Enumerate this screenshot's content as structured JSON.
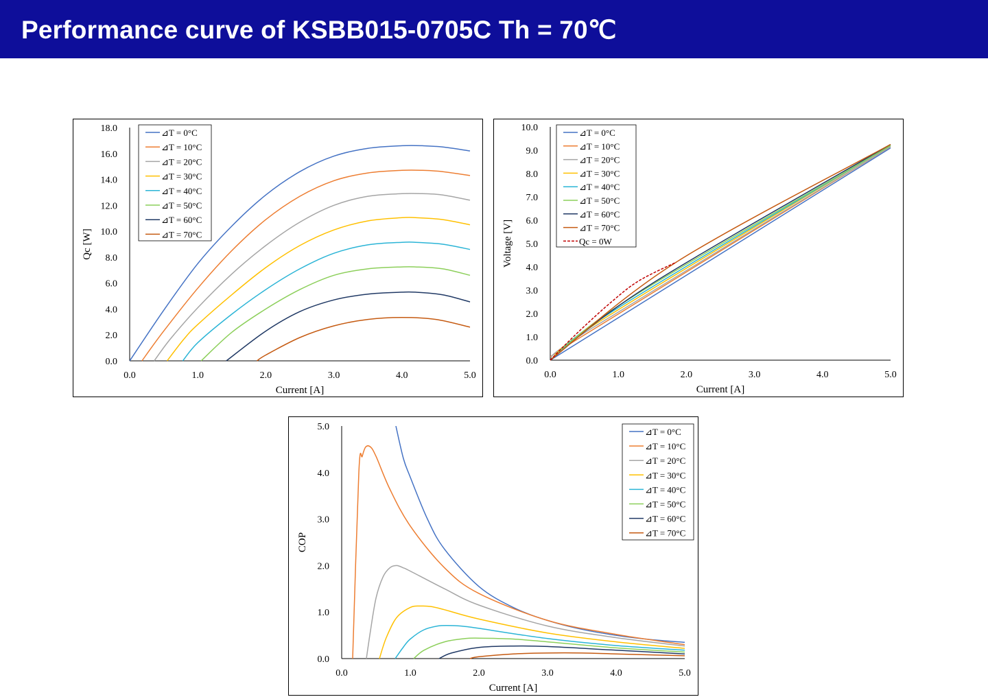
{
  "header": {
    "title": "Performance curve of KSBB015-0705C Th = 70℃",
    "background": "#0e0e9a",
    "text_color": "#ffffff"
  },
  "series_colors": [
    "#4472c4",
    "#ed7d31",
    "#a5a5a5",
    "#ffc000",
    "#2ab4d6",
    "#8ccf5a",
    "#1f3864",
    "#c55a11"
  ],
  "chart_data": [
    {
      "id": "qc",
      "type": "line",
      "xlabel": "Current [A]",
      "ylabel": "Qc [W]",
      "xlim": [
        0,
        5
      ],
      "ylim": [
        0,
        18
      ],
      "xticks": [
        "0.0",
        "1.0",
        "2.0",
        "3.0",
        "4.0",
        "5.0"
      ],
      "yticks": [
        "0.0",
        "2.0",
        "4.0",
        "6.0",
        "8.0",
        "10.0",
        "12.0",
        "14.0",
        "16.0",
        "18.0"
      ],
      "legend_position": "top-left",
      "series": [
        {
          "name": "⊿T = 0°C",
          "color": "#4472c4",
          "x": [
            0,
            0.5,
            1,
            1.5,
            2,
            2.5,
            3,
            3.5,
            4,
            4.3,
            4.6,
            5
          ],
          "y": [
            0,
            3.9,
            7.5,
            10.4,
            12.8,
            14.6,
            15.8,
            16.4,
            16.6,
            16.6,
            16.5,
            16.2
          ]
        },
        {
          "name": "⊿T = 10°C",
          "color": "#ed7d31",
          "x": [
            0.18,
            0.5,
            1,
            1.5,
            2,
            2.5,
            3,
            3.5,
            4,
            4.3,
            4.6,
            5
          ],
          "y": [
            0,
            2.3,
            5.6,
            8.5,
            10.9,
            12.7,
            13.9,
            14.5,
            14.7,
            14.7,
            14.6,
            14.3
          ]
        },
        {
          "name": "⊿T = 20°C",
          "color": "#a5a5a5",
          "x": [
            0.36,
            0.6,
            1,
            1.5,
            2,
            2.5,
            3,
            3.5,
            4,
            4.3,
            4.6,
            5
          ],
          "y": [
            0,
            1.7,
            4.1,
            6.7,
            8.9,
            10.7,
            12.0,
            12.7,
            12.9,
            12.9,
            12.8,
            12.4
          ]
        },
        {
          "name": "⊿T = 30°C",
          "color": "#ffc000",
          "x": [
            0.55,
            0.8,
            1,
            1.5,
            2,
            2.5,
            3,
            3.5,
            4,
            4.2,
            4.6,
            5
          ],
          "y": [
            0,
            1.7,
            2.8,
            5.1,
            7.2,
            8.9,
            10.1,
            10.8,
            11.05,
            11.05,
            10.9,
            10.5
          ]
        },
        {
          "name": "⊿T = 40°C",
          "color": "#2ab4d6",
          "x": [
            0.78,
            1,
            1.5,
            2,
            2.5,
            3,
            3.5,
            4,
            4.2,
            4.6,
            5
          ],
          "y": [
            0,
            1.4,
            3.6,
            5.5,
            7.1,
            8.3,
            8.95,
            9.15,
            9.15,
            9.0,
            8.6
          ]
        },
        {
          "name": "⊿T = 50°C",
          "color": "#8ccf5a",
          "x": [
            1.05,
            1.5,
            2,
            2.5,
            3,
            3.5,
            4,
            4.2,
            4.6,
            5
          ],
          "y": [
            0,
            2.2,
            4.0,
            5.5,
            6.6,
            7.1,
            7.25,
            7.25,
            7.1,
            6.6
          ]
        },
        {
          "name": "⊿T = 60°C",
          "color": "#1f3864",
          "x": [
            1.42,
            2,
            2.5,
            3,
            3.5,
            4,
            4.2,
            4.6,
            5
          ],
          "y": [
            0,
            2.3,
            3.8,
            4.7,
            5.15,
            5.3,
            5.3,
            5.1,
            4.55
          ]
        },
        {
          "name": "⊿T = 70°C",
          "color": "#c55a11",
          "x": [
            1.87,
            2,
            2.5,
            3,
            3.5,
            4,
            4.5,
            5
          ],
          "y": [
            0,
            0.45,
            1.8,
            2.7,
            3.2,
            3.35,
            3.2,
            2.6
          ]
        }
      ]
    },
    {
      "id": "voltage",
      "type": "line",
      "xlabel": "Current [A]",
      "ylabel": "Voltage [V]",
      "xlim": [
        0,
        5
      ],
      "ylim": [
        0,
        10
      ],
      "xticks": [
        "0.0",
        "1.0",
        "2.0",
        "3.0",
        "4.0",
        "5.0"
      ],
      "yticks": [
        "0.0",
        "1.0",
        "2.0",
        "3.0",
        "4.0",
        "5.0",
        "6.0",
        "7.0",
        "8.0",
        "9.0",
        "10.0"
      ],
      "legend_position": "top-left",
      "series": [
        {
          "name": "⊿T = 0°C",
          "color": "#4472c4",
          "x": [
            0,
            5
          ],
          "y": [
            0,
            9.1
          ]
        },
        {
          "name": "⊿T = 10°C",
          "color": "#ed7d31",
          "x": [
            0,
            0.4,
            5
          ],
          "y": [
            0,
            0.9,
            9.15
          ]
        },
        {
          "name": "⊿T = 20°C",
          "color": "#a5a5a5",
          "x": [
            0,
            0.6,
            5
          ],
          "y": [
            0,
            1.35,
            9.15
          ]
        },
        {
          "name": "⊿T = 30°C",
          "color": "#ffc000",
          "x": [
            0,
            0.8,
            5
          ],
          "y": [
            0,
            1.8,
            9.2
          ]
        },
        {
          "name": "⊿T = 40°C",
          "color": "#2ab4d6",
          "x": [
            0,
            1.0,
            5
          ],
          "y": [
            0,
            2.25,
            9.2
          ]
        },
        {
          "name": "⊿T = 50°C",
          "color": "#8ccf5a",
          "x": [
            0,
            1.2,
            5
          ],
          "y": [
            0,
            2.7,
            9.2
          ]
        },
        {
          "name": "⊿T = 60°C",
          "color": "#1f3864",
          "x": [
            0,
            1.45,
            5
          ],
          "y": [
            0,
            3.2,
            9.25
          ]
        },
        {
          "name": "⊿T = 70°C",
          "color": "#c55a11",
          "x": [
            0,
            1.85,
            5
          ],
          "y": [
            0,
            4.2,
            9.25
          ]
        },
        {
          "name": "Qc = 0W",
          "color": "#c00000",
          "dashed": true,
          "x": [
            0,
            0.2,
            0.5,
            0.9,
            1.3,
            1.85
          ],
          "y": [
            0,
            0.6,
            1.45,
            2.5,
            3.4,
            4.2
          ]
        }
      ]
    },
    {
      "id": "cop",
      "type": "line",
      "xlabel": "Current [A]",
      "ylabel": "COP",
      "xlim": [
        0,
        5
      ],
      "ylim": [
        0,
        5
      ],
      "xticks": [
        "0.0",
        "1.0",
        "2.0",
        "3.0",
        "4.0",
        "5.0"
      ],
      "yticks": [
        "0.0",
        "1.0",
        "2.0",
        "3.0",
        "4.0",
        "5.0"
      ],
      "legend_position": "top-right",
      "series": [
        {
          "name": "⊿T = 0°C",
          "color": "#4472c4",
          "x": [
            0.79,
            0.9,
            1.0,
            1.25,
            1.5,
            2.0,
            2.5,
            3.0,
            3.5,
            4.0,
            4.5,
            5.0
          ],
          "y": [
            5.0,
            4.3,
            3.9,
            3.0,
            2.35,
            1.55,
            1.1,
            0.82,
            0.63,
            0.5,
            0.41,
            0.35
          ]
        },
        {
          "name": "⊿T = 10°C",
          "color": "#ed7d31",
          "x": [
            0.16,
            0.25,
            0.3,
            0.35,
            0.42,
            0.5,
            0.7,
            1.0,
            1.5,
            2.0,
            3.0,
            4.0,
            5.0
          ],
          "y": [
            0,
            4.0,
            4.35,
            4.55,
            4.55,
            4.35,
            3.65,
            2.85,
            1.95,
            1.4,
            0.82,
            0.52,
            0.3
          ]
        },
        {
          "name": "⊿T = 20°C",
          "color": "#a5a5a5",
          "x": [
            0.36,
            0.42,
            0.5,
            0.6,
            0.7,
            0.8,
            0.9,
            1.0,
            1.5,
            2.0,
            3.0,
            4.0,
            5.0
          ],
          "y": [
            0,
            0.6,
            1.3,
            1.75,
            1.95,
            2.0,
            1.95,
            1.88,
            1.5,
            1.15,
            0.7,
            0.45,
            0.27
          ]
        },
        {
          "name": "⊿T = 30°C",
          "color": "#ffc000",
          "x": [
            0.55,
            0.65,
            0.8,
            1.0,
            1.15,
            1.3,
            1.5,
            2.0,
            3.0,
            4.0,
            5.0
          ],
          "y": [
            0,
            0.45,
            0.88,
            1.1,
            1.13,
            1.12,
            1.05,
            0.85,
            0.55,
            0.36,
            0.22
          ]
        },
        {
          "name": "⊿T = 40°C",
          "color": "#2ab4d6",
          "x": [
            0.78,
            0.9,
            1.0,
            1.2,
            1.4,
            1.6,
            1.8,
            2.0,
            3.0,
            4.0,
            5.0
          ],
          "y": [
            0,
            0.25,
            0.42,
            0.62,
            0.7,
            0.71,
            0.69,
            0.65,
            0.43,
            0.28,
            0.18
          ]
        },
        {
          "name": "⊿T = 50°C",
          "color": "#8ccf5a",
          "x": [
            1.05,
            1.2,
            1.5,
            1.8,
            2.0,
            2.5,
            3.0,
            4.0,
            5.0
          ],
          "y": [
            0,
            0.18,
            0.36,
            0.43,
            0.44,
            0.42,
            0.36,
            0.23,
            0.14
          ]
        },
        {
          "name": "⊿T = 60°C",
          "color": "#1f3864",
          "x": [
            1.42,
            1.6,
            2.0,
            2.5,
            3.0,
            4.0,
            5.0
          ],
          "y": [
            0,
            0.12,
            0.24,
            0.27,
            0.26,
            0.18,
            0.1
          ]
        },
        {
          "name": "⊿T = 70°C",
          "color": "#c55a11",
          "x": [
            1.87,
            2.0,
            2.5,
            3.0,
            3.5,
            4.0,
            5.0
          ],
          "y": [
            0,
            0.04,
            0.1,
            0.12,
            0.12,
            0.1,
            0.06
          ]
        }
      ]
    }
  ]
}
